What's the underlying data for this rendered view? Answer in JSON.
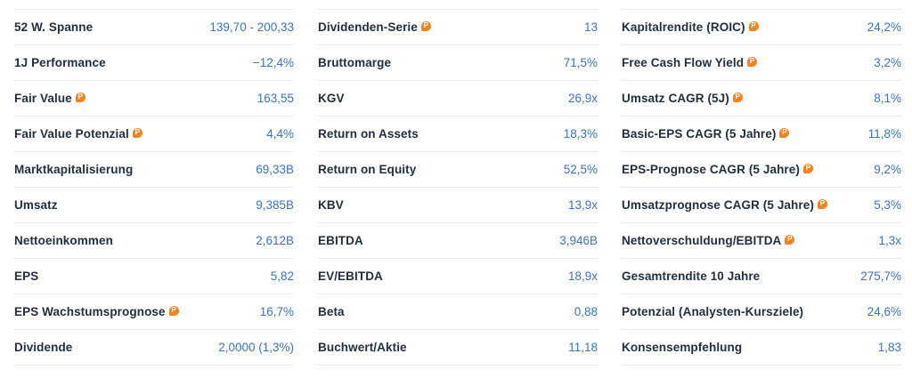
{
  "panel": {
    "name": "Kennzahlen-Übersicht",
    "colors": {
      "label": "#232f3e",
      "value": "#3d74b6",
      "divider": "#e7e9ec",
      "pro_badge": "#f5841f"
    },
    "icons": {
      "pro_badge": {
        "name": "pro-badge-icon",
        "glyph": "P"
      }
    },
    "columns": [
      {
        "rows": [
          {
            "label": "52 W. Spanne",
            "value": "139,70 - 200,33",
            "pro": false
          },
          {
            "label": "1J Performance",
            "value": "−12,4%",
            "pro": false
          },
          {
            "label": "Fair Value",
            "value": "163,55",
            "pro": true
          },
          {
            "label": "Fair Value Potenzial",
            "value": "4,4%",
            "pro": true
          },
          {
            "label": "Marktkapitalisierung",
            "value": "69,33B",
            "pro": false
          },
          {
            "label": "Umsatz",
            "value": "9,385B",
            "pro": false
          },
          {
            "label": "Nettoeinkommen",
            "value": "2,612B",
            "pro": false
          },
          {
            "label": "EPS",
            "value": "5,82",
            "pro": false
          },
          {
            "label": "EPS Wachstumsprognose",
            "value": "16,7%",
            "pro": true
          },
          {
            "label": "Dividende",
            "value": "2,0000 (1,3%)",
            "pro": false
          }
        ]
      },
      {
        "rows": [
          {
            "label": "Dividenden-Serie",
            "value": "13",
            "pro": true
          },
          {
            "label": "Bruttomarge",
            "value": "71,5%",
            "pro": false
          },
          {
            "label": "KGV",
            "value": "26,9x",
            "pro": false
          },
          {
            "label": "Return on Assets",
            "value": "18,3%",
            "pro": false
          },
          {
            "label": "Return on Equity",
            "value": "52,5%",
            "pro": false
          },
          {
            "label": "KBV",
            "value": "13,9x",
            "pro": false
          },
          {
            "label": "EBITDA",
            "value": "3,946B",
            "pro": false
          },
          {
            "label": "EV/EBITDA",
            "value": "18,9x",
            "pro": false
          },
          {
            "label": "Beta",
            "value": "0,88",
            "pro": false
          },
          {
            "label": "Buchwert/Aktie",
            "value": "11,18",
            "pro": false
          }
        ]
      },
      {
        "rows": [
          {
            "label": "Kapitalrendite (ROIC)",
            "value": "24,2%",
            "pro": true
          },
          {
            "label": "Free Cash Flow Yield",
            "value": "3,2%",
            "pro": true
          },
          {
            "label": "Umsatz CAGR (5J)",
            "value": "8,1%",
            "pro": true
          },
          {
            "label": "Basic-EPS CAGR (5 Jahre)",
            "value": "11,8%",
            "pro": true
          },
          {
            "label": "EPS-Prognose CAGR (5 Jahre)",
            "value": "9,2%",
            "pro": true
          },
          {
            "label": "Umsatzprognose CAGR (5 Jahre)",
            "value": "5,3%",
            "pro": true
          },
          {
            "label": "Nettoverschuldung/EBITDA",
            "value": "1,3x",
            "pro": true
          },
          {
            "label": "Gesamtrendite 10 Jahre",
            "value": "275,7%",
            "pro": false
          },
          {
            "label": "Potenzial (Analysten-Kursziele)",
            "value": "24,6%",
            "pro": false
          },
          {
            "label": "Konsensempfehlung",
            "value": "1,83",
            "pro": false
          }
        ]
      }
    ]
  }
}
